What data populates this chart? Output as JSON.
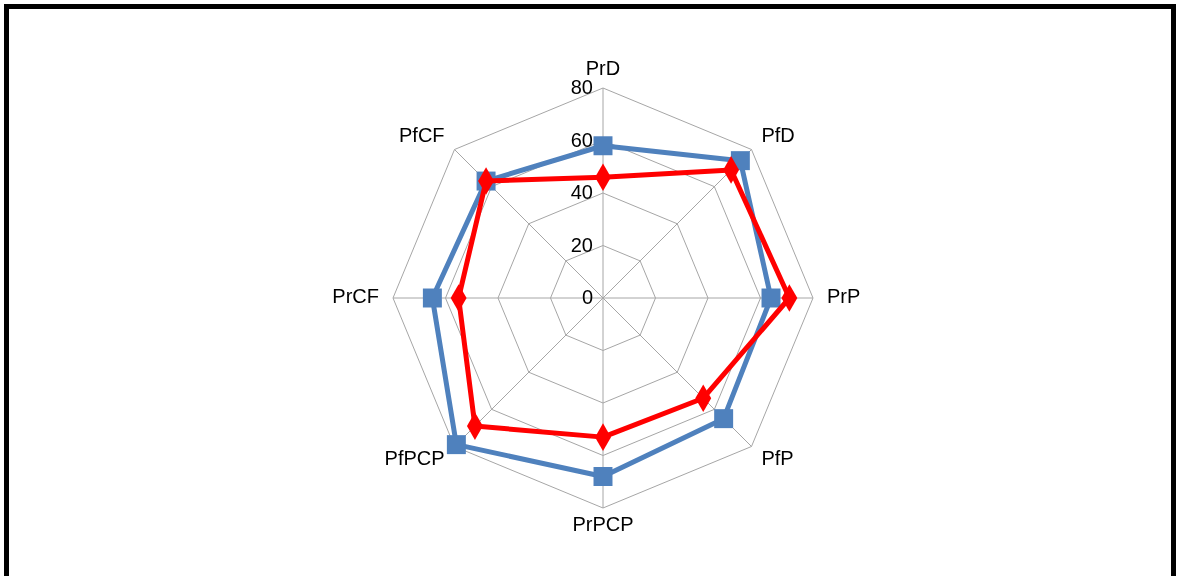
{
  "chart_data": {
    "type": "radar",
    "categories": [
      "PrD",
      "PfD",
      "PrP",
      "PfP",
      "PrPCP",
      "PfPCP",
      "PrCF",
      "PfCF"
    ],
    "ylim": [
      0,
      80
    ],
    "yticks": [
      0,
      20,
      40,
      60,
      80
    ],
    "grid": true,
    "series": [
      {
        "color": "#4f81bd",
        "marker": "square",
        "values": [
          58,
          74,
          64,
          65,
          68,
          79,
          65,
          63
        ]
      },
      {
        "color": "#ff0000",
        "marker": "diamond",
        "values": [
          46,
          69,
          71,
          54,
          53,
          69,
          55,
          63
        ]
      }
    ]
  }
}
